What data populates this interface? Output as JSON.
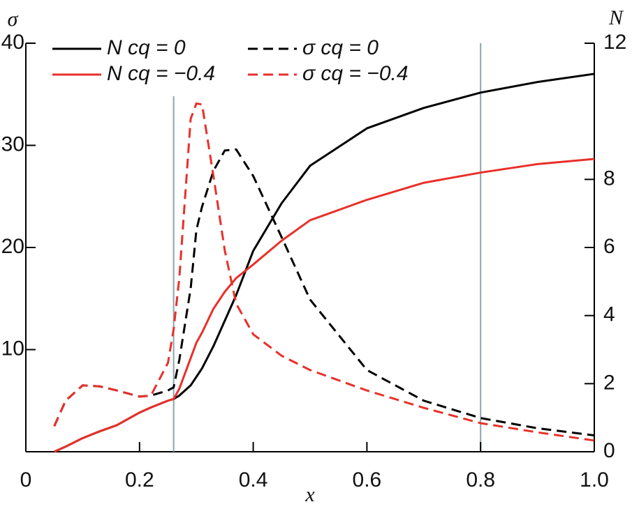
{
  "chart_data": {
    "type": "line",
    "xlabel": "x",
    "ylabel": "σ",
    "y2label": "N",
    "x": [
      0.05,
      0.07,
      0.1,
      0.13,
      0.16,
      0.2,
      0.22,
      0.25,
      0.26,
      0.27,
      0.29,
      0.3,
      0.31,
      0.33,
      0.35,
      0.37,
      0.4,
      0.45,
      0.5,
      0.6,
      0.7,
      0.8,
      0.9,
      1.0
    ],
    "series": [
      {
        "name": "N cq = 0",
        "color": "#000000",
        "style": "solid",
        "axis": "y2",
        "values": [
          0,
          0.15,
          0.4,
          0.6,
          0.78,
          1.15,
          1.3,
          1.5,
          1.55,
          1.65,
          1.95,
          2.2,
          2.45,
          3.1,
          3.85,
          4.6,
          5.9,
          7.3,
          8.4,
          9.5,
          10.1,
          10.55,
          10.86,
          11.1
        ]
      },
      {
        "name": "σ cq = 0",
        "color": "#000000",
        "style": "dashed",
        "values": [
          2.5,
          5,
          6.5,
          6.4,
          6,
          5.4,
          5.5,
          6,
          6.3,
          9,
          16,
          21.7,
          24,
          27.5,
          29.5,
          29.6,
          27,
          21,
          14.9,
          8,
          5,
          3.3,
          2.3,
          1.6
        ]
      },
      {
        "name": "N cq = −0.4",
        "color": "#e8302a",
        "style": "solid",
        "axis": "y2",
        "values": [
          0,
          0.15,
          0.4,
          0.6,
          0.78,
          1.15,
          1.3,
          1.5,
          1.55,
          1.85,
          2.75,
          3.2,
          3.5,
          4.2,
          4.7,
          5.1,
          5.5,
          6.2,
          6.8,
          7.4,
          7.9,
          8.2,
          8.45,
          8.6
        ]
      },
      {
        "name": "σ cq = −0.4",
        "color": "#e8302a",
        "style": "dashed",
        "values": [
          2.5,
          5,
          6.5,
          6.4,
          6,
          5.4,
          5.5,
          8.7,
          12,
          17,
          32.6,
          34.1,
          34,
          27,
          19.7,
          14.5,
          11.5,
          9.4,
          8,
          6,
          4.3,
          2.8,
          1.9,
          1.1
        ]
      }
    ],
    "vlines": [
      0.26,
      0.8
    ],
    "vline_color": "#8fa3ad",
    "xlim": [
      0,
      1
    ],
    "xticks": [
      0,
      0.2,
      0.4,
      0.6,
      0.8,
      {
        "value": 1,
        "label": "1.0"
      }
    ],
    "ylim": [
      0,
      40
    ],
    "yticks": [
      10,
      20,
      30,
      40
    ],
    "y2lim": [
      0,
      12
    ],
    "y2ticks": [
      0,
      2,
      4,
      6,
      8,
      12
    ]
  }
}
